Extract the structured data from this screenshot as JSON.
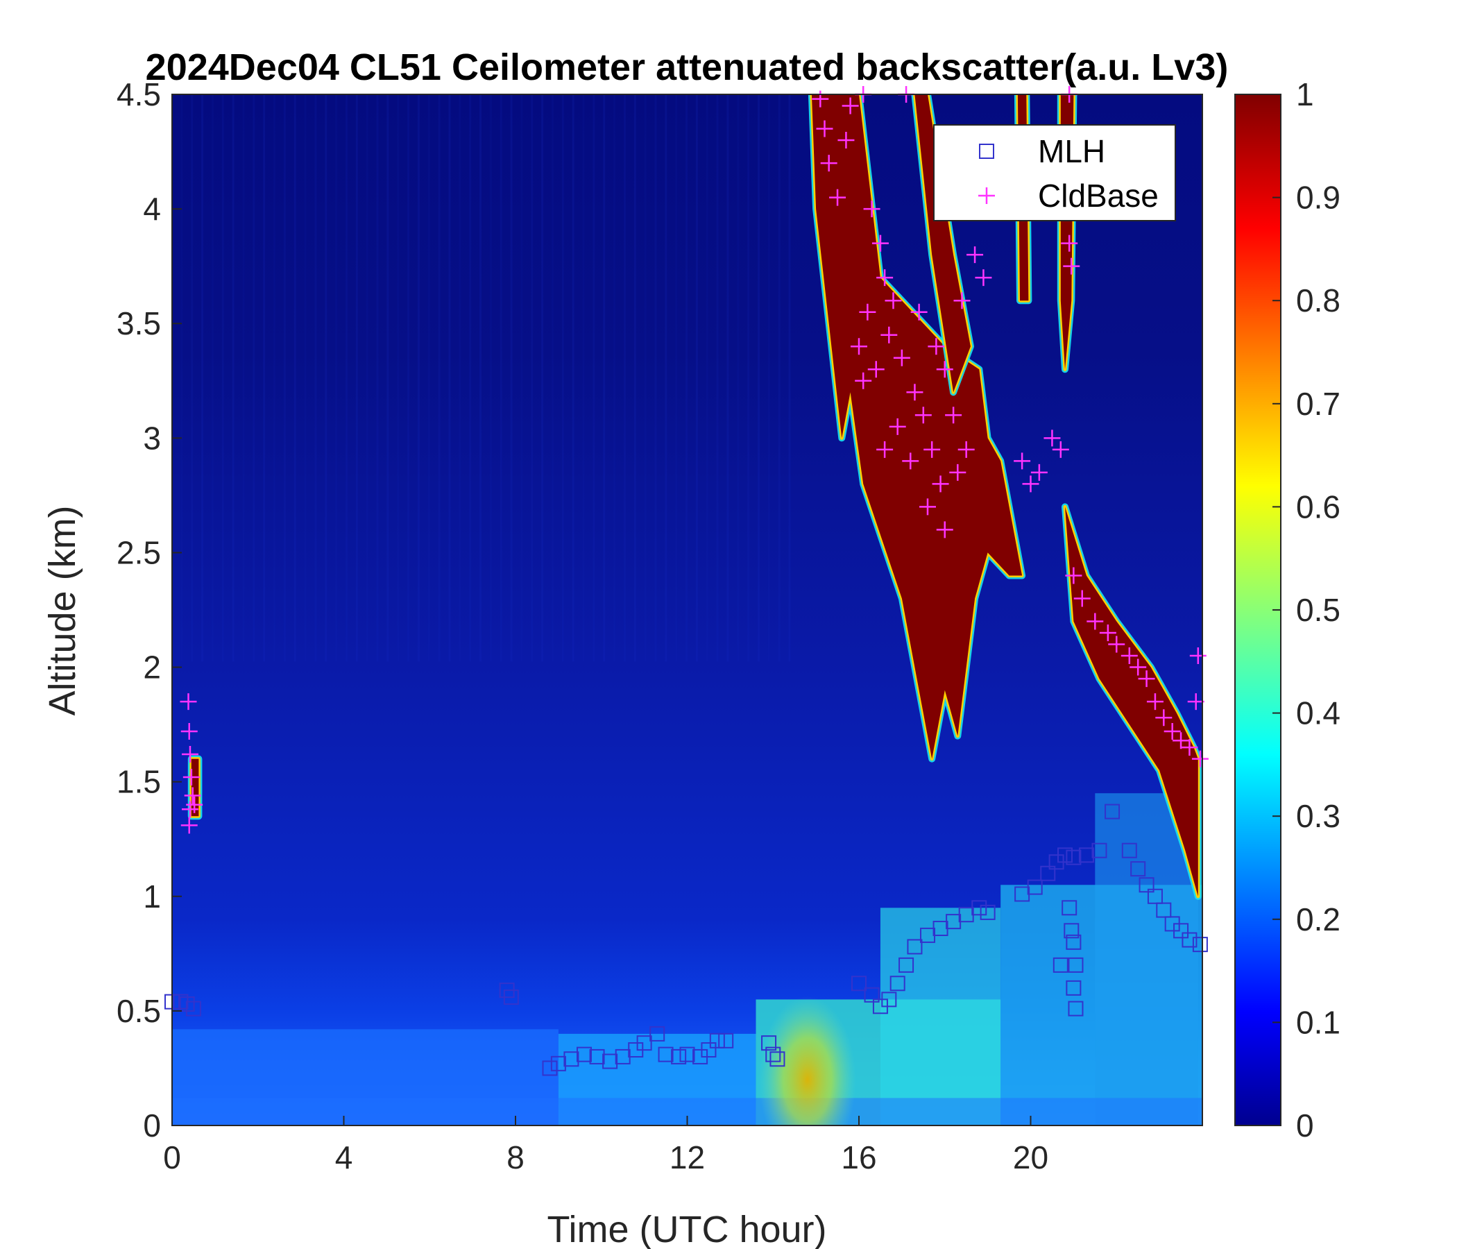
{
  "chart_data": {
    "type": "heatmap",
    "title": "2024Dec04 CL51 Ceilometer attenuated backscatter(a.u. Lv3)",
    "xlabel": "Time (UTC hour)",
    "ylabel": "Altitude (km)",
    "xlim": [
      0,
      24
    ],
    "ylim": [
      0,
      4.5
    ],
    "xticks": [
      0,
      4,
      8,
      12,
      16,
      20
    ],
    "xtick_labels": [
      "0",
      "4",
      "8",
      "12",
      "16",
      "20"
    ],
    "yticks": [
      0,
      0.5,
      1,
      1.5,
      2,
      2.5,
      3,
      3.5,
      4,
      4.5
    ],
    "ytick_labels": [
      "0",
      "0.5",
      "1",
      "1.5",
      "2",
      "2.5",
      "3",
      "3.5",
      "4",
      "4.5"
    ],
    "colorbar": {
      "range": [
        0,
        1
      ],
      "ticks": [
        0,
        0.1,
        0.2,
        0.3,
        0.4,
        0.5,
        0.6,
        0.7,
        0.8,
        0.9,
        1
      ],
      "tick_labels": [
        "0",
        "0.1",
        "0.2",
        "0.3",
        "0.4",
        "0.5",
        "0.6",
        "0.7",
        "0.8",
        "0.9",
        "1"
      ],
      "colormap": "jet"
    },
    "legend": {
      "placement": "top-right",
      "entries": [
        {
          "name": "MLH",
          "marker": "square",
          "color": "#3333cc"
        },
        {
          "name": "CldBase",
          "marker": "plus",
          "color": "#ff33ff"
        }
      ]
    },
    "cloud_regions": [
      {
        "label": "upper cloud",
        "polygon": [
          [
            14.9,
            4.5
          ],
          [
            16.0,
            4.5
          ],
          [
            16.5,
            3.7
          ],
          [
            17.0,
            3.6
          ],
          [
            18.0,
            3.4
          ],
          [
            18.8,
            3.3
          ],
          [
            19.0,
            3.0
          ],
          [
            19.3,
            2.9
          ],
          [
            19.8,
            2.4
          ],
          [
            19.5,
            2.4
          ],
          [
            19.0,
            2.5
          ],
          [
            18.7,
            2.3
          ],
          [
            18.5,
            2.0
          ],
          [
            18.3,
            1.7
          ],
          [
            18.0,
            1.9
          ],
          [
            17.7,
            1.6
          ],
          [
            17.4,
            1.9
          ],
          [
            17.0,
            2.3
          ],
          [
            16.1,
            2.8
          ],
          [
            15.8,
            3.2
          ],
          [
            15.6,
            3.0
          ],
          [
            15.3,
            3.5
          ],
          [
            15.0,
            4.0
          ]
        ]
      },
      {
        "label": "upper cloud streaks",
        "polygon": [
          [
            17.3,
            4.5
          ],
          [
            17.6,
            4.5
          ],
          [
            18.2,
            3.8
          ],
          [
            18.6,
            3.4
          ],
          [
            18.2,
            3.2
          ],
          [
            17.7,
            3.8
          ]
        ]
      },
      {
        "label": "upper cloud streaks",
        "polygon": [
          [
            19.7,
            4.5
          ],
          [
            19.9,
            4.5
          ],
          [
            19.95,
            3.6
          ],
          [
            19.75,
            3.6
          ]
        ]
      },
      {
        "label": "upper cloud streaks",
        "polygon": [
          [
            20.7,
            4.5
          ],
          [
            21.0,
            4.5
          ],
          [
            20.95,
            3.6
          ],
          [
            20.8,
            3.3
          ],
          [
            20.7,
            3.6
          ]
        ]
      },
      {
        "label": "lower cloud",
        "polygon": [
          [
            20.8,
            2.7
          ],
          [
            21.3,
            2.4
          ],
          [
            22.0,
            2.2
          ],
          [
            22.8,
            2.0
          ],
          [
            23.4,
            1.8
          ],
          [
            23.8,
            1.65
          ],
          [
            23.9,
            1.6
          ],
          [
            23.9,
            1.0
          ],
          [
            23.6,
            1.2
          ],
          [
            23.0,
            1.55
          ],
          [
            22.3,
            1.75
          ],
          [
            21.6,
            1.95
          ],
          [
            21.0,
            2.2
          ]
        ]
      },
      {
        "label": "early cloud",
        "polygon": [
          [
            0.45,
            1.6
          ],
          [
            0.62,
            1.6
          ],
          [
            0.62,
            1.35
          ],
          [
            0.45,
            1.35
          ]
        ]
      }
    ],
    "mlh_points": [
      {
        "x": 0.0,
        "y": 0.54
      },
      {
        "x": 0.2,
        "y": 0.54
      },
      {
        "x": 0.35,
        "y": 0.53
      },
      {
        "x": 0.5,
        "y": 0.51
      },
      {
        "x": 7.8,
        "y": 0.59
      },
      {
        "x": 7.9,
        "y": 0.56
      },
      {
        "x": 8.8,
        "y": 0.25
      },
      {
        "x": 9.0,
        "y": 0.27
      },
      {
        "x": 9.3,
        "y": 0.29
      },
      {
        "x": 9.6,
        "y": 0.31
      },
      {
        "x": 9.9,
        "y": 0.3
      },
      {
        "x": 10.2,
        "y": 0.28
      },
      {
        "x": 10.5,
        "y": 0.3
      },
      {
        "x": 10.8,
        "y": 0.33
      },
      {
        "x": 11.0,
        "y": 0.36
      },
      {
        "x": 11.3,
        "y": 0.4
      },
      {
        "x": 11.5,
        "y": 0.31
      },
      {
        "x": 11.8,
        "y": 0.3
      },
      {
        "x": 12.0,
        "y": 0.31
      },
      {
        "x": 12.3,
        "y": 0.3
      },
      {
        "x": 12.5,
        "y": 0.33
      },
      {
        "x": 12.7,
        "y": 0.37
      },
      {
        "x": 12.9,
        "y": 0.37
      },
      {
        "x": 13.9,
        "y": 0.36
      },
      {
        "x": 14.0,
        "y": 0.31
      },
      {
        "x": 14.1,
        "y": 0.29
      },
      {
        "x": 16.0,
        "y": 0.62
      },
      {
        "x": 16.3,
        "y": 0.57
      },
      {
        "x": 16.5,
        "y": 0.52
      },
      {
        "x": 16.7,
        "y": 0.55
      },
      {
        "x": 16.9,
        "y": 0.62
      },
      {
        "x": 17.1,
        "y": 0.7
      },
      {
        "x": 17.3,
        "y": 0.78
      },
      {
        "x": 17.6,
        "y": 0.83
      },
      {
        "x": 17.9,
        "y": 0.86
      },
      {
        "x": 18.2,
        "y": 0.89
      },
      {
        "x": 18.5,
        "y": 0.92
      },
      {
        "x": 18.8,
        "y": 0.95
      },
      {
        "x": 19.0,
        "y": 0.93
      },
      {
        "x": 19.8,
        "y": 1.01
      },
      {
        "x": 20.1,
        "y": 1.04
      },
      {
        "x": 20.4,
        "y": 1.1
      },
      {
        "x": 20.6,
        "y": 1.15
      },
      {
        "x": 20.8,
        "y": 1.18
      },
      {
        "x": 21.0,
        "y": 1.17
      },
      {
        "x": 20.9,
        "y": 0.95
      },
      {
        "x": 20.95,
        "y": 0.85
      },
      {
        "x": 21.0,
        "y": 0.8
      },
      {
        "x": 21.05,
        "y": 0.7
      },
      {
        "x": 21.0,
        "y": 0.6
      },
      {
        "x": 21.05,
        "y": 0.51
      },
      {
        "x": 20.7,
        "y": 0.7
      },
      {
        "x": 21.3,
        "y": 1.18
      },
      {
        "x": 21.6,
        "y": 1.2
      },
      {
        "x": 21.9,
        "y": 1.37
      },
      {
        "x": 22.3,
        "y": 1.2
      },
      {
        "x": 22.5,
        "y": 1.12
      },
      {
        "x": 22.7,
        "y": 1.05
      },
      {
        "x": 22.9,
        "y": 1.0
      },
      {
        "x": 23.1,
        "y": 0.94
      },
      {
        "x": 23.3,
        "y": 0.88
      },
      {
        "x": 23.5,
        "y": 0.85
      },
      {
        "x": 23.7,
        "y": 0.81
      },
      {
        "x": 23.95,
        "y": 0.79
      }
    ],
    "cldbase_points": [
      {
        "x": 0.38,
        "y": 1.85
      },
      {
        "x": 0.4,
        "y": 1.72
      },
      {
        "x": 0.42,
        "y": 1.62
      },
      {
        "x": 0.45,
        "y": 1.52
      },
      {
        "x": 0.48,
        "y": 1.44
      },
      {
        "x": 0.42,
        "y": 1.38
      },
      {
        "x": 0.4,
        "y": 1.31
      },
      {
        "x": 0.52,
        "y": 1.4
      },
      {
        "x": 15.1,
        "y": 4.48
      },
      {
        "x": 15.2,
        "y": 4.35
      },
      {
        "x": 15.3,
        "y": 4.2
      },
      {
        "x": 15.5,
        "y": 4.05
      },
      {
        "x": 15.7,
        "y": 4.3
      },
      {
        "x": 15.8,
        "y": 4.45
      },
      {
        "x": 16.1,
        "y": 4.5
      },
      {
        "x": 17.1,
        "y": 4.5
      },
      {
        "x": 16.3,
        "y": 4.0
      },
      {
        "x": 16.5,
        "y": 3.85
      },
      {
        "x": 16.6,
        "y": 3.7
      },
      {
        "x": 16.8,
        "y": 3.6
      },
      {
        "x": 16.2,
        "y": 3.55
      },
      {
        "x": 16.0,
        "y": 3.4
      },
      {
        "x": 16.1,
        "y": 3.25
      },
      {
        "x": 16.4,
        "y": 3.3
      },
      {
        "x": 16.7,
        "y": 3.45
      },
      {
        "x": 17.0,
        "y": 3.35
      },
      {
        "x": 17.3,
        "y": 3.2
      },
      {
        "x": 16.9,
        "y": 3.05
      },
      {
        "x": 16.6,
        "y": 2.95
      },
      {
        "x": 17.2,
        "y": 2.9
      },
      {
        "x": 17.5,
        "y": 3.1
      },
      {
        "x": 17.7,
        "y": 2.95
      },
      {
        "x": 17.9,
        "y": 2.8
      },
      {
        "x": 17.6,
        "y": 2.7
      },
      {
        "x": 18.0,
        "y": 2.6
      },
      {
        "x": 18.3,
        "y": 2.85
      },
      {
        "x": 18.5,
        "y": 2.95
      },
      {
        "x": 18.2,
        "y": 3.1
      },
      {
        "x": 18.0,
        "y": 3.3
      },
      {
        "x": 18.4,
        "y": 3.6
      },
      {
        "x": 18.7,
        "y": 3.8
      },
      {
        "x": 18.9,
        "y": 3.7
      },
      {
        "x": 17.8,
        "y": 3.4
      },
      {
        "x": 17.4,
        "y": 3.55
      },
      {
        "x": 19.8,
        "y": 2.9
      },
      {
        "x": 20.0,
        "y": 2.8
      },
      {
        "x": 20.2,
        "y": 2.85
      },
      {
        "x": 20.5,
        "y": 3.0
      },
      {
        "x": 20.7,
        "y": 2.95
      },
      {
        "x": 20.9,
        "y": 3.85
      },
      {
        "x": 20.95,
        "y": 3.75
      },
      {
        "x": 20.9,
        "y": 4.5
      },
      {
        "x": 21.0,
        "y": 2.4
      },
      {
        "x": 21.2,
        "y": 2.3
      },
      {
        "x": 21.5,
        "y": 2.2
      },
      {
        "x": 21.8,
        "y": 2.15
      },
      {
        "x": 22.0,
        "y": 2.1
      },
      {
        "x": 22.3,
        "y": 2.05
      },
      {
        "x": 22.5,
        "y": 2.0
      },
      {
        "x": 22.7,
        "y": 1.95
      },
      {
        "x": 22.9,
        "y": 1.85
      },
      {
        "x": 23.1,
        "y": 1.78
      },
      {
        "x": 23.3,
        "y": 1.72
      },
      {
        "x": 23.5,
        "y": 1.68
      },
      {
        "x": 23.7,
        "y": 1.65
      },
      {
        "x": 23.85,
        "y": 1.85
      },
      {
        "x": 23.9,
        "y": 2.05
      },
      {
        "x": 23.95,
        "y": 1.6
      }
    ]
  }
}
